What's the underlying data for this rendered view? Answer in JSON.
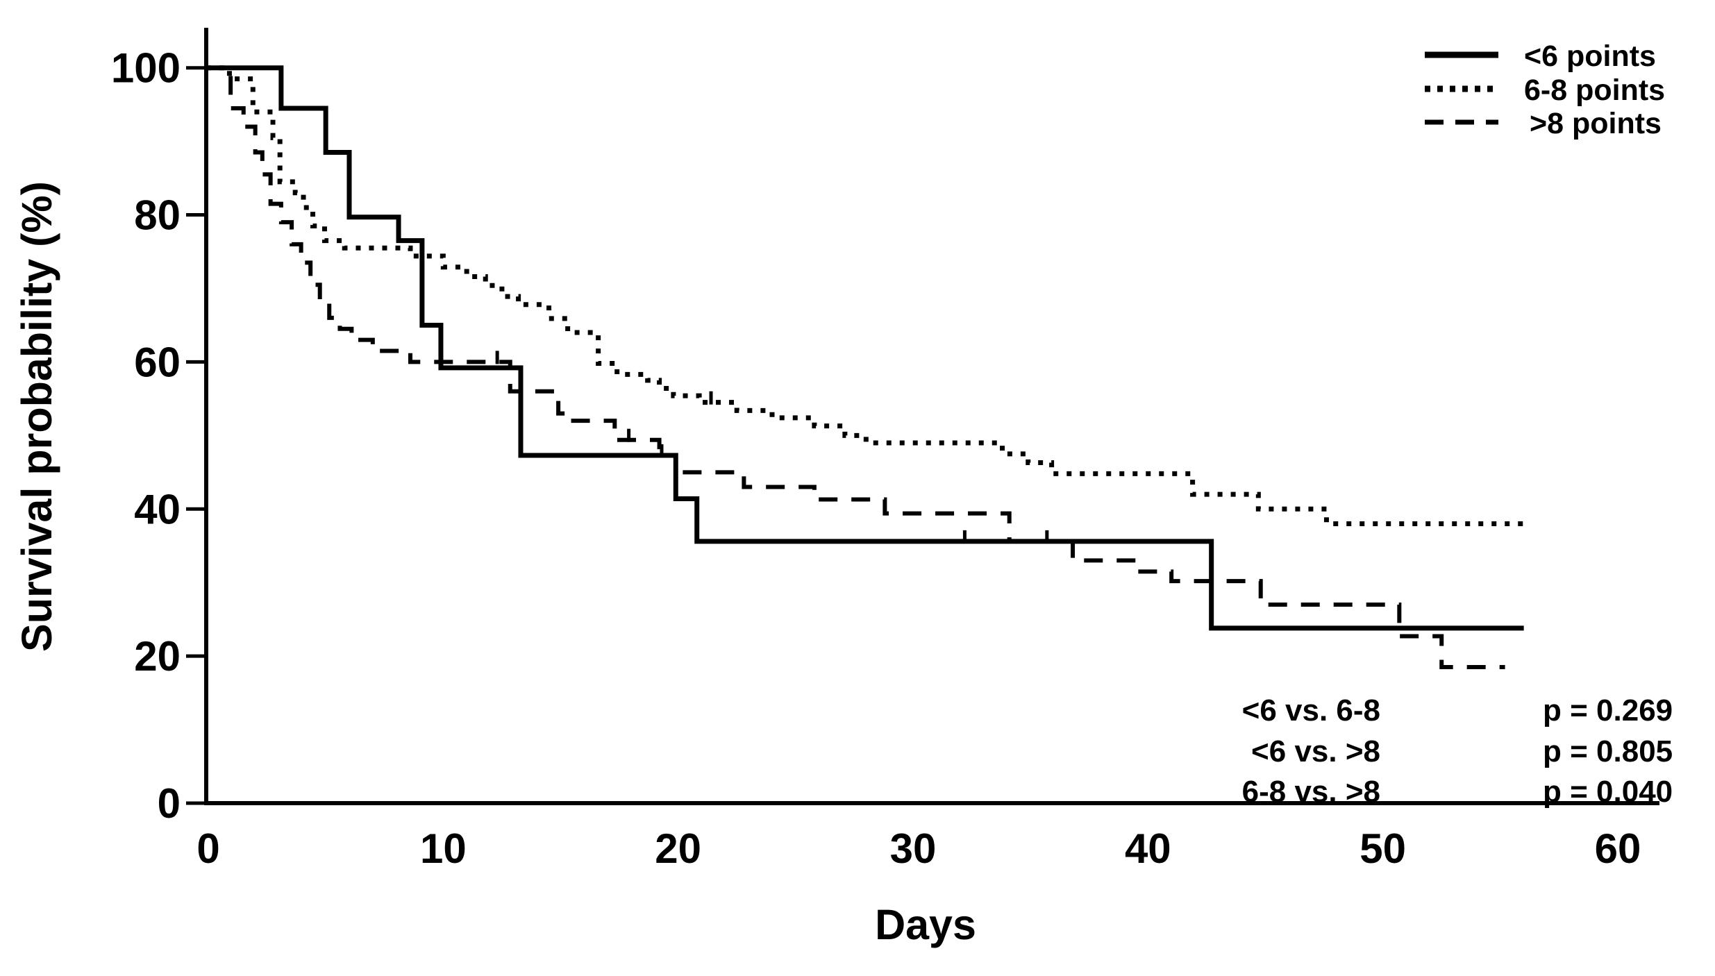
{
  "colors": {
    "line": "#000000",
    "text": "#000000",
    "background": "#ffffff"
  },
  "chart_data": {
    "type": "line",
    "subtype": "kaplan-meier-step",
    "title": "",
    "xlabel": "Days",
    "ylabel": "Survival probability (%)",
    "xlim": [
      0,
      62
    ],
    "ylim": [
      0,
      105
    ],
    "x_ticks": [
      0,
      10,
      20,
      30,
      40,
      50,
      60
    ],
    "y_ticks": [
      100,
      80,
      60,
      40,
      20,
      0
    ],
    "grid": false,
    "legend_position": "top-right",
    "series": [
      {
        "name": "<6 points",
        "style": "solid",
        "end_day": 56,
        "points": [
          [
            0,
            100
          ],
          [
            3.1,
            94.5
          ],
          [
            5.0,
            88.5
          ],
          [
            6.0,
            79.7
          ],
          [
            8.1,
            76.5
          ],
          [
            9.1,
            65
          ],
          [
            9.9,
            59.2
          ],
          [
            13.3,
            47.3
          ],
          [
            19.9,
            41.4
          ],
          [
            20.8,
            35.6
          ],
          [
            42.7,
            23.8
          ]
        ],
        "censor_ticks": [
          19.3,
          32.2,
          35.7
        ]
      },
      {
        "name": "6-8 points",
        "style": "dotted",
        "end_day": 56.2,
        "points": [
          [
            0,
            100
          ],
          [
            0.9,
            98.5
          ],
          [
            1.9,
            94
          ],
          [
            2.75,
            90.5
          ],
          [
            3.05,
            84.5
          ],
          [
            3.7,
            83
          ],
          [
            4.05,
            81
          ],
          [
            4.45,
            78.5
          ],
          [
            4.95,
            76.5
          ],
          [
            5.8,
            75.5
          ],
          [
            8.6,
            74.4
          ],
          [
            10,
            72.9
          ],
          [
            11,
            71.6
          ],
          [
            11.8,
            70.4
          ],
          [
            12.5,
            68.9
          ],
          [
            13.2,
            67.8
          ],
          [
            14.5,
            65.9
          ],
          [
            15.3,
            64
          ],
          [
            16.6,
            59.8
          ],
          [
            17.4,
            58.3
          ],
          [
            18.7,
            57.5
          ],
          [
            19.2,
            56.4
          ],
          [
            19.8,
            55.4
          ],
          [
            20.9,
            54.5
          ],
          [
            22.5,
            53.4
          ],
          [
            24,
            52.4
          ],
          [
            25.8,
            51.3
          ],
          [
            27.1,
            50
          ],
          [
            28,
            49
          ],
          [
            33.8,
            47.5
          ],
          [
            34.9,
            46.3
          ],
          [
            35.9,
            44.8
          ],
          [
            41.9,
            42
          ],
          [
            44.7,
            40
          ],
          [
            47.6,
            38
          ]
        ],
        "censor_ticks": [
          21.4
        ]
      },
      {
        "name": ">8 points",
        "style": "dashed",
        "end_day": 55.2,
        "points": [
          [
            0,
            100
          ],
          [
            0.95,
            94.5
          ],
          [
            1.5,
            92
          ],
          [
            2.0,
            88.5
          ],
          [
            2.3,
            85.5
          ],
          [
            2.65,
            81.5
          ],
          [
            3.1,
            79
          ],
          [
            3.55,
            76
          ],
          [
            3.95,
            73.5
          ],
          [
            4.35,
            70.5
          ],
          [
            4.75,
            68
          ],
          [
            5.15,
            66
          ],
          [
            5.6,
            64.5
          ],
          [
            6.1,
            63
          ],
          [
            7.0,
            61.5
          ],
          [
            8.6,
            60
          ],
          [
            12.85,
            56
          ],
          [
            14.9,
            53
          ],
          [
            15.4,
            52
          ],
          [
            17.3,
            49.4
          ],
          [
            19.2,
            47.3
          ],
          [
            19.9,
            45
          ],
          [
            22.8,
            43
          ],
          [
            25.8,
            41.3
          ],
          [
            28.8,
            39.4
          ],
          [
            34.1,
            35.6
          ],
          [
            36.8,
            33
          ],
          [
            39.5,
            31.5
          ],
          [
            41.0,
            30.2
          ],
          [
            44.8,
            27
          ],
          [
            50.7,
            22.7
          ],
          [
            52.5,
            18.5
          ]
        ],
        "censor_ticks": [
          12.3,
          17.9
        ]
      }
    ]
  },
  "stats": {
    "rows": [
      {
        "comparison": "<6 vs. 6-8",
        "p_value": "p = 0.269"
      },
      {
        "comparison": "<6 vs. >8",
        "p_value": "p = 0.805"
      },
      {
        "comparison": "6-8 vs. >8",
        "p_value": "p = 0.040"
      }
    ]
  }
}
